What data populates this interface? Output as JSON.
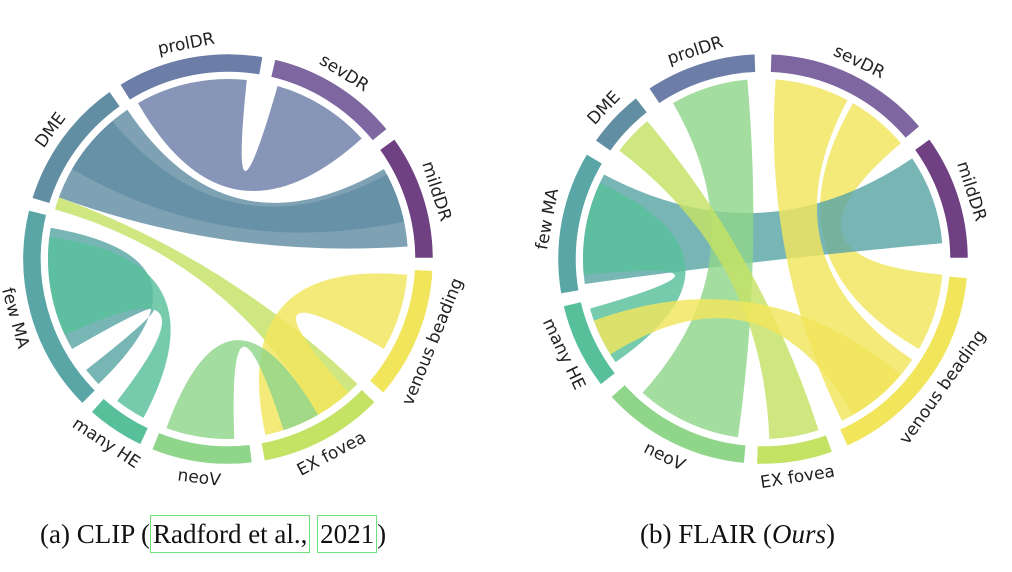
{
  "diagrams": [
    {
      "caption": {
        "prefix": "(a) CLIP (",
        "cite_authors": "Radford et al.,",
        "cite_year": "2021",
        "suffix": ")"
      },
      "segments": [
        {
          "label": "mildDR",
          "color": "#6f4182"
        },
        {
          "label": "sevDR",
          "color": "#7e67a0"
        },
        {
          "label": "prolDR",
          "color": "#6c7ea8"
        },
        {
          "label": "DME",
          "color": "#628ea3"
        },
        {
          "label": "few MA",
          "color": "#5aa6a6"
        },
        {
          "label": "many HE",
          "color": "#58bf9b"
        },
        {
          "label": "neoV",
          "color": "#8fd68a"
        },
        {
          "label": "EX fovea",
          "color": "#c4e264"
        },
        {
          "label": "venous beading",
          "color": "#f1e55b"
        }
      ]
    },
    {
      "caption": {
        "prefix": "(b) FLAIR (",
        "emph": "Ours",
        "suffix": ")"
      },
      "segments": [
        {
          "label": "mildDR",
          "color": "#6f4182"
        },
        {
          "label": "sevDR",
          "color": "#7e67a0"
        },
        {
          "label": "prolDR",
          "color": "#6c7ea8"
        },
        {
          "label": "DME",
          "color": "#628ea3"
        },
        {
          "label": "few MA",
          "color": "#5aa6a6"
        },
        {
          "label": "many HE",
          "color": "#58bf9b"
        },
        {
          "label": "neoV",
          "color": "#8fd68a"
        },
        {
          "label": "EX fovea",
          "color": "#c4e264"
        },
        {
          "label": "venous beading",
          "color": "#f1e55b"
        }
      ]
    }
  ]
}
